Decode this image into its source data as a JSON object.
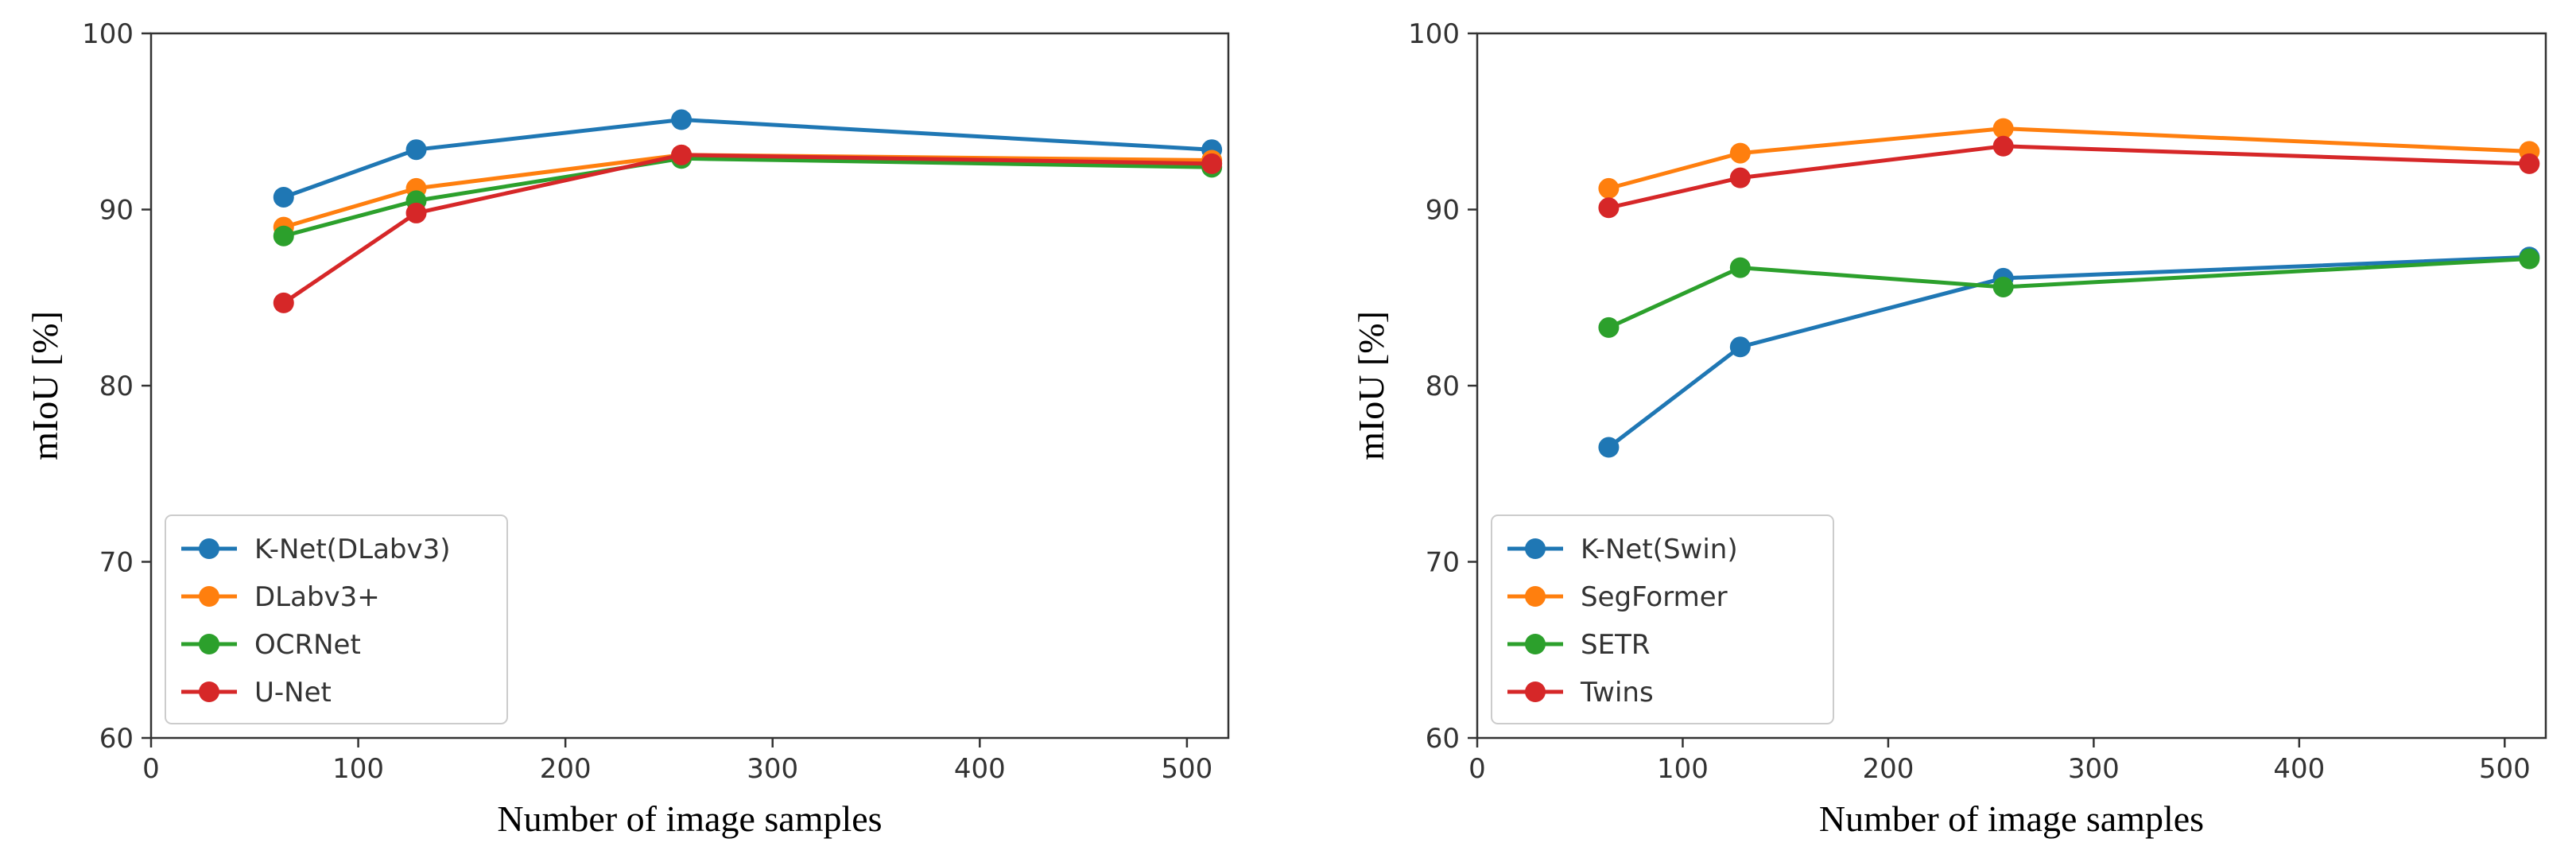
{
  "chart_data": [
    {
      "type": "line",
      "title": "",
      "xlabel": "Number of image samples",
      "ylabel": "mIoU [%]",
      "xlim": [
        0,
        520
      ],
      "ylim": [
        60,
        100
      ],
      "xticks": [
        0,
        100,
        200,
        300,
        400,
        500
      ],
      "yticks": [
        60,
        70,
        80,
        90,
        100
      ],
      "xtick_labels": [
        "0",
        "100",
        "200",
        "300",
        "400",
        "500"
      ],
      "ytick_labels": [
        "60",
        "70",
        "80",
        "90",
        "100"
      ],
      "grid": false,
      "legend_position": "lower-left",
      "x": [
        64,
        128,
        256,
        512
      ],
      "series": [
        {
          "name": "K-Net(DLabv3)",
          "color": "#1f77b4",
          "values": [
            90.7,
            93.4,
            95.1,
            93.4
          ]
        },
        {
          "name": "DLabv3+",
          "color": "#ff7f0e",
          "values": [
            89.0,
            91.2,
            93.1,
            92.8
          ]
        },
        {
          "name": "OCRNet",
          "color": "#2ca02c",
          "values": [
            88.5,
            90.5,
            92.9,
            92.4
          ]
        },
        {
          "name": "U-Net",
          "color": "#d62728",
          "values": [
            84.7,
            89.8,
            93.1,
            92.6
          ]
        }
      ]
    },
    {
      "type": "line",
      "title": "",
      "xlabel": "Number of image samples",
      "ylabel": "mIoU [%]",
      "xlim": [
        0,
        520
      ],
      "ylim": [
        60,
        100
      ],
      "xticks": [
        0,
        100,
        200,
        300,
        400,
        500
      ],
      "yticks": [
        60,
        70,
        80,
        90,
        100
      ],
      "xtick_labels": [
        "0",
        "100",
        "200",
        "300",
        "400",
        "500"
      ],
      "ytick_labels": [
        "60",
        "70",
        "80",
        "90",
        "100"
      ],
      "grid": false,
      "legend_position": "lower-left",
      "x": [
        64,
        128,
        256,
        512
      ],
      "series": [
        {
          "name": "K-Net(Swin)",
          "color": "#1f77b4",
          "values": [
            76.5,
            82.2,
            86.1,
            87.3
          ]
        },
        {
          "name": "SegFormer",
          "color": "#ff7f0e",
          "values": [
            91.2,
            93.2,
            94.6,
            93.3
          ]
        },
        {
          "name": "SETR",
          "color": "#2ca02c",
          "values": [
            83.3,
            86.7,
            85.6,
            87.2
          ]
        },
        {
          "name": "Twins",
          "color": "#d62728",
          "values": [
            90.1,
            91.8,
            93.6,
            92.6
          ]
        }
      ]
    }
  ]
}
